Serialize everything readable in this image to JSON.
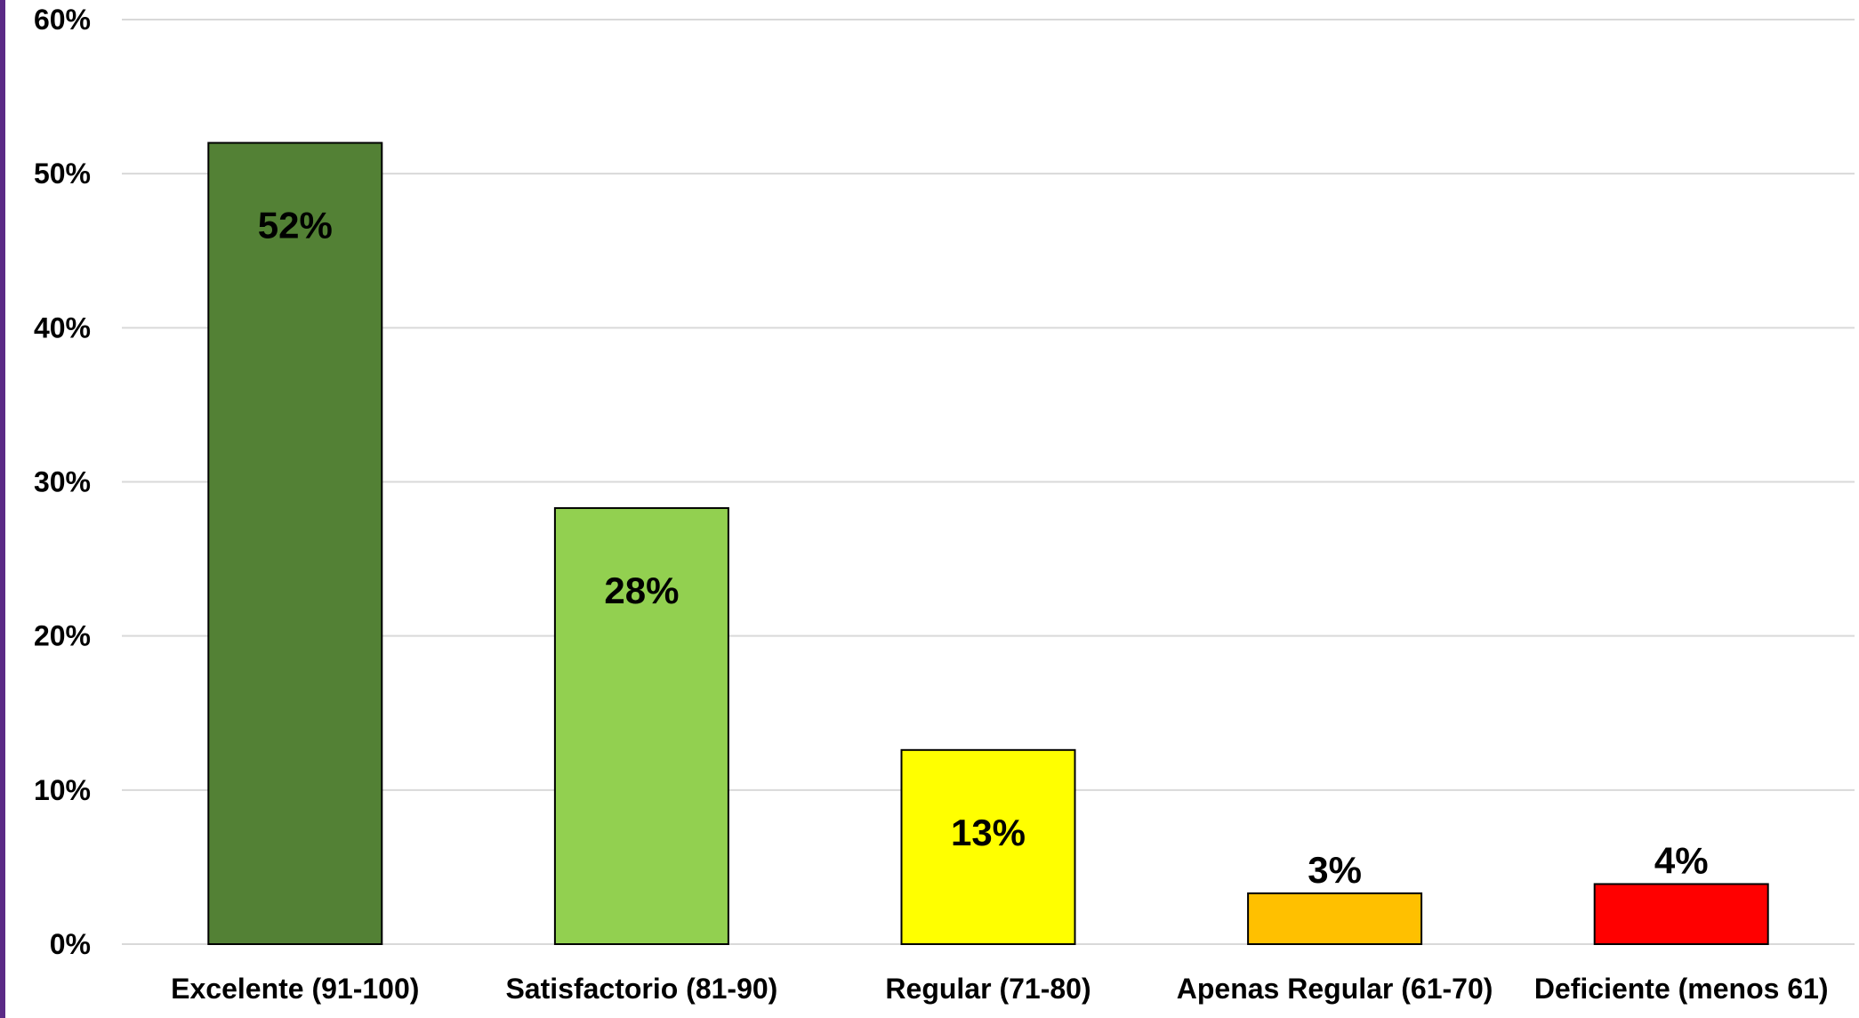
{
  "chart_data": {
    "type": "bar",
    "categories": [
      "Excelente (91-100)",
      "Satisfactorio (81-90)",
      "Regular (71-80)",
      "Apenas Regular (61-70)",
      "Deficiente (menos 61)"
    ],
    "values": [
      52,
      28.3,
      12.6,
      3.3,
      3.9
    ],
    "data_labels": [
      "52%",
      "28%",
      "13%",
      "3%",
      "4%"
    ],
    "label_position": [
      "inside",
      "inside",
      "inside",
      "above",
      "above"
    ],
    "colors": [
      "#538135",
      "#92d050",
      "#ffff00",
      "#ffc000",
      "#ff0000"
    ],
    "title": "",
    "xlabel": "",
    "ylabel": "",
    "ylim": [
      0,
      60
    ],
    "yticks": [
      0,
      10,
      20,
      30,
      40,
      50,
      60
    ],
    "ytick_labels": [
      "0%",
      "10%",
      "20%",
      "30%",
      "40%",
      "50%",
      "60%"
    ],
    "grid": true,
    "legend": "none"
  }
}
